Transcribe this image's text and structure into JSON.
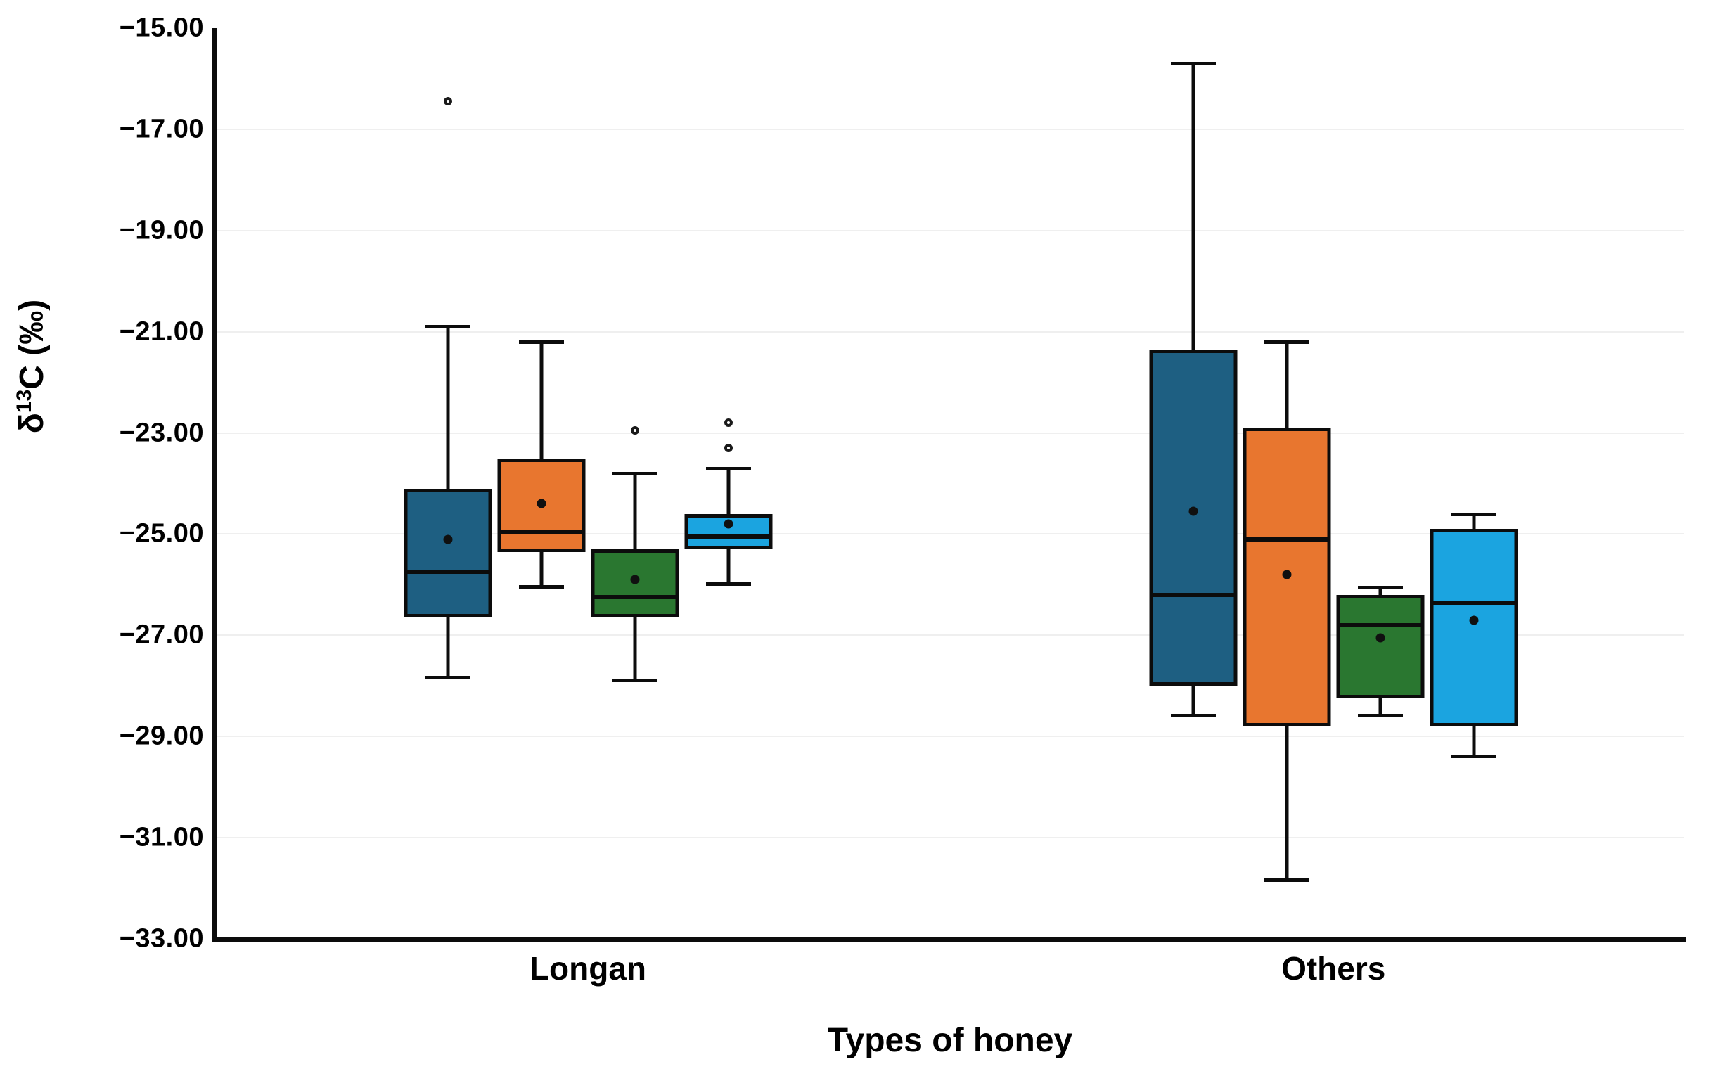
{
  "figure": {
    "background": "#ffffff",
    "ylabel_display": {
      "prefix": "δ",
      "sup": "13",
      "suffix": "C (‰)"
    }
  },
  "chart_data": {
    "type": "boxplot",
    "title": "",
    "xlabel": "Types of honey",
    "ylabel": "δ13C (‰)",
    "ylim": [
      -33.0,
      -15.0
    ],
    "ytick_step": 2.0,
    "yticks": [
      {
        "value": -15.0,
        "label": "−15.00"
      },
      {
        "value": -17.0,
        "label": "−17.00"
      },
      {
        "value": -19.0,
        "label": "−19.00"
      },
      {
        "value": -21.0,
        "label": "−21.00"
      },
      {
        "value": -23.0,
        "label": "−23.00"
      },
      {
        "value": -25.0,
        "label": "−25.00"
      },
      {
        "value": -27.0,
        "label": "−27.00"
      },
      {
        "value": -29.0,
        "label": "−29.00"
      },
      {
        "value": -31.0,
        "label": "−31.00"
      },
      {
        "value": -33.0,
        "label": "−33.00"
      }
    ],
    "grid": "horizontal-light",
    "legend": "none",
    "categories": [
      "Longan",
      "Others"
    ],
    "series_colors": [
      "#1e5f82",
      "#e8762f",
      "#2a7730",
      "#1ba4e0"
    ],
    "series_names": [
      "series-1-dark-blue",
      "series-2-orange",
      "series-3-green",
      "series-4-light-blue"
    ],
    "groups": [
      {
        "category": "Longan",
        "boxes": [
          {
            "series": 0,
            "whisker_low": -27.85,
            "q1": -26.65,
            "median": -25.75,
            "q3": -24.1,
            "whisker_high": -20.9,
            "mean": -25.1,
            "outliers": [
              -16.45
            ]
          },
          {
            "series": 1,
            "whisker_low": -26.05,
            "q1": -25.35,
            "median": -24.95,
            "q3": -23.5,
            "whisker_high": -21.2,
            "mean": -24.4,
            "outliers": []
          },
          {
            "series": 2,
            "whisker_low": -27.9,
            "q1": -26.65,
            "median": -26.25,
            "q3": -25.3,
            "whisker_high": -23.8,
            "mean": -25.9,
            "outliers": [
              -22.95
            ]
          },
          {
            "series": 3,
            "whisker_low": -26.0,
            "q1": -25.3,
            "median": -25.05,
            "q3": -24.6,
            "whisker_high": -23.7,
            "mean": -24.8,
            "outliers": [
              -22.8,
              -23.3
            ]
          }
        ]
      },
      {
        "category": "Others",
        "boxes": [
          {
            "series": 0,
            "whisker_low": -28.6,
            "q1": -28.0,
            "median": -26.2,
            "q3": -21.35,
            "whisker_high": -15.7,
            "mean": -24.55,
            "outliers": []
          },
          {
            "series": 1,
            "whisker_low": -31.85,
            "q1": -28.8,
            "median": -25.1,
            "q3": -22.9,
            "whisker_high": -21.2,
            "mean": -25.8,
            "outliers": []
          },
          {
            "series": 2,
            "whisker_low": -28.6,
            "q1": -28.25,
            "median": -26.8,
            "q3": -26.2,
            "whisker_high": -26.05,
            "mean": -27.05,
            "outliers": []
          },
          {
            "series": 3,
            "whisker_low": -29.4,
            "q1": -28.8,
            "median": -26.35,
            "q3": -24.9,
            "whisker_high": -24.6,
            "mean": -26.7,
            "outliers": []
          }
        ]
      }
    ]
  }
}
